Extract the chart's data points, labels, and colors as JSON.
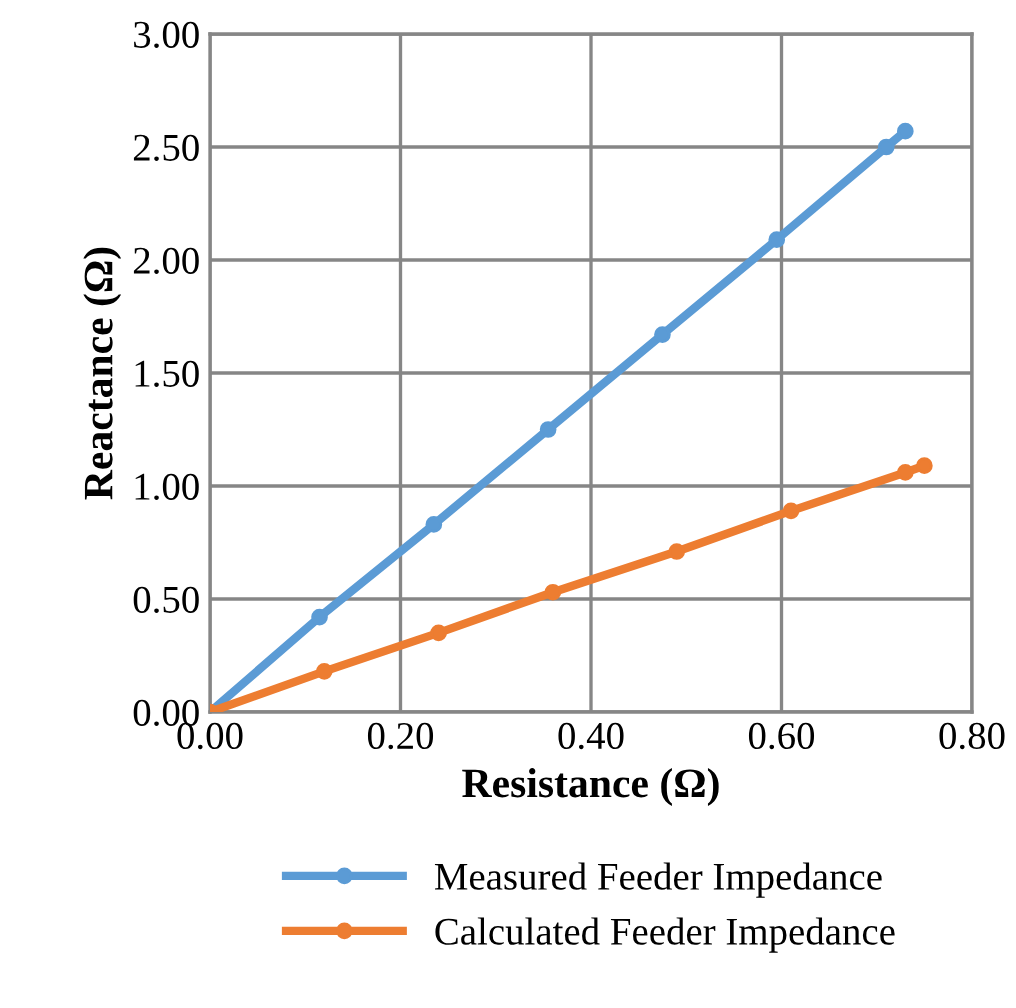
{
  "chart_data": {
    "type": "line",
    "xlabel": "Resistance (Ω)",
    "ylabel": "Reactance (Ω)",
    "series": [
      {
        "name": "Measured Feeder Impedance",
        "color": "#5b9bd5",
        "x": [
          0,
          0.115,
          0.235,
          0.355,
          0.475,
          0.595,
          0.71,
          0.73
        ],
        "values": [
          0,
          0.42,
          0.83,
          1.25,
          1.67,
          2.09,
          2.5,
          2.57
        ]
      },
      {
        "name": "Calculated Feeder Impedance",
        "color": "#ed7d31",
        "x": [
          0,
          0.12,
          0.24,
          0.36,
          0.49,
          0.61,
          0.73,
          0.75
        ],
        "values": [
          0,
          0.18,
          0.35,
          0.53,
          0.71,
          0.89,
          1.06,
          1.09
        ]
      }
    ],
    "xlim": [
      0,
      0.8
    ],
    "xticks": [
      {
        "value": 0,
        "label": "0.00"
      },
      {
        "value": 0.2,
        "label": "0.20"
      },
      {
        "value": 0.4,
        "label": "0.40"
      },
      {
        "value": 0.6,
        "label": "0.60"
      },
      {
        "value": 0.8,
        "label": "0.80"
      }
    ],
    "ylim": [
      0,
      3
    ],
    "yticks": [
      {
        "value": 0,
        "label": "0.00"
      },
      {
        "value": 0.5,
        "label": "0.50"
      },
      {
        "value": 1,
        "label": "1.00"
      },
      {
        "value": 1.5,
        "label": "1.50"
      },
      {
        "value": 2,
        "label": "2.00"
      },
      {
        "value": 2.5,
        "label": "2.50"
      },
      {
        "value": 3,
        "label": "3.00"
      }
    ],
    "grid": true,
    "legend": "bottom",
    "marker": "circle",
    "line_style": "solid"
  }
}
